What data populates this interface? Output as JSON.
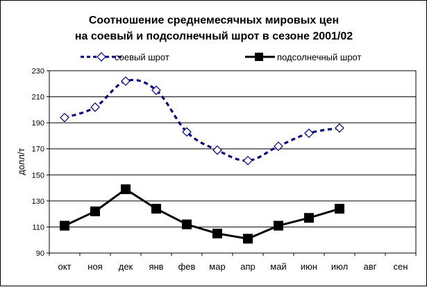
{
  "chart_data": {
    "type": "line",
    "title_lines": [
      "Соотношение среднемесячных мировых  цен",
      "на соевый и подсолнечный шрот в сезоне 2001/02"
    ],
    "xlabel": "",
    "ylabel": "долл/т",
    "categories": [
      "окт",
      "ноя",
      "дек",
      "янв",
      "фев",
      "мар",
      "апр",
      "май",
      "июн",
      "июл",
      "авг",
      "сен"
    ],
    "yticks": [
      "230",
      "210",
      "190",
      "170",
      "150",
      "130",
      "110",
      "90"
    ],
    "ylim": [
      90,
      230
    ],
    "grid": true,
    "legend_position": "top",
    "series": [
      {
        "name": "соевый шрот",
        "values": [
          194,
          202,
          222,
          215,
          183,
          169,
          161,
          172,
          182,
          186,
          null,
          null
        ],
        "color": "#000080",
        "style": "dashed",
        "marker": "diamond-open"
      },
      {
        "name": "подсолнечный шрот",
        "values": [
          111,
          122,
          139,
          124,
          112,
          105,
          101,
          111,
          117,
          124,
          null,
          null
        ],
        "color": "#000000",
        "style": "solid",
        "marker": "square-filled"
      }
    ]
  }
}
